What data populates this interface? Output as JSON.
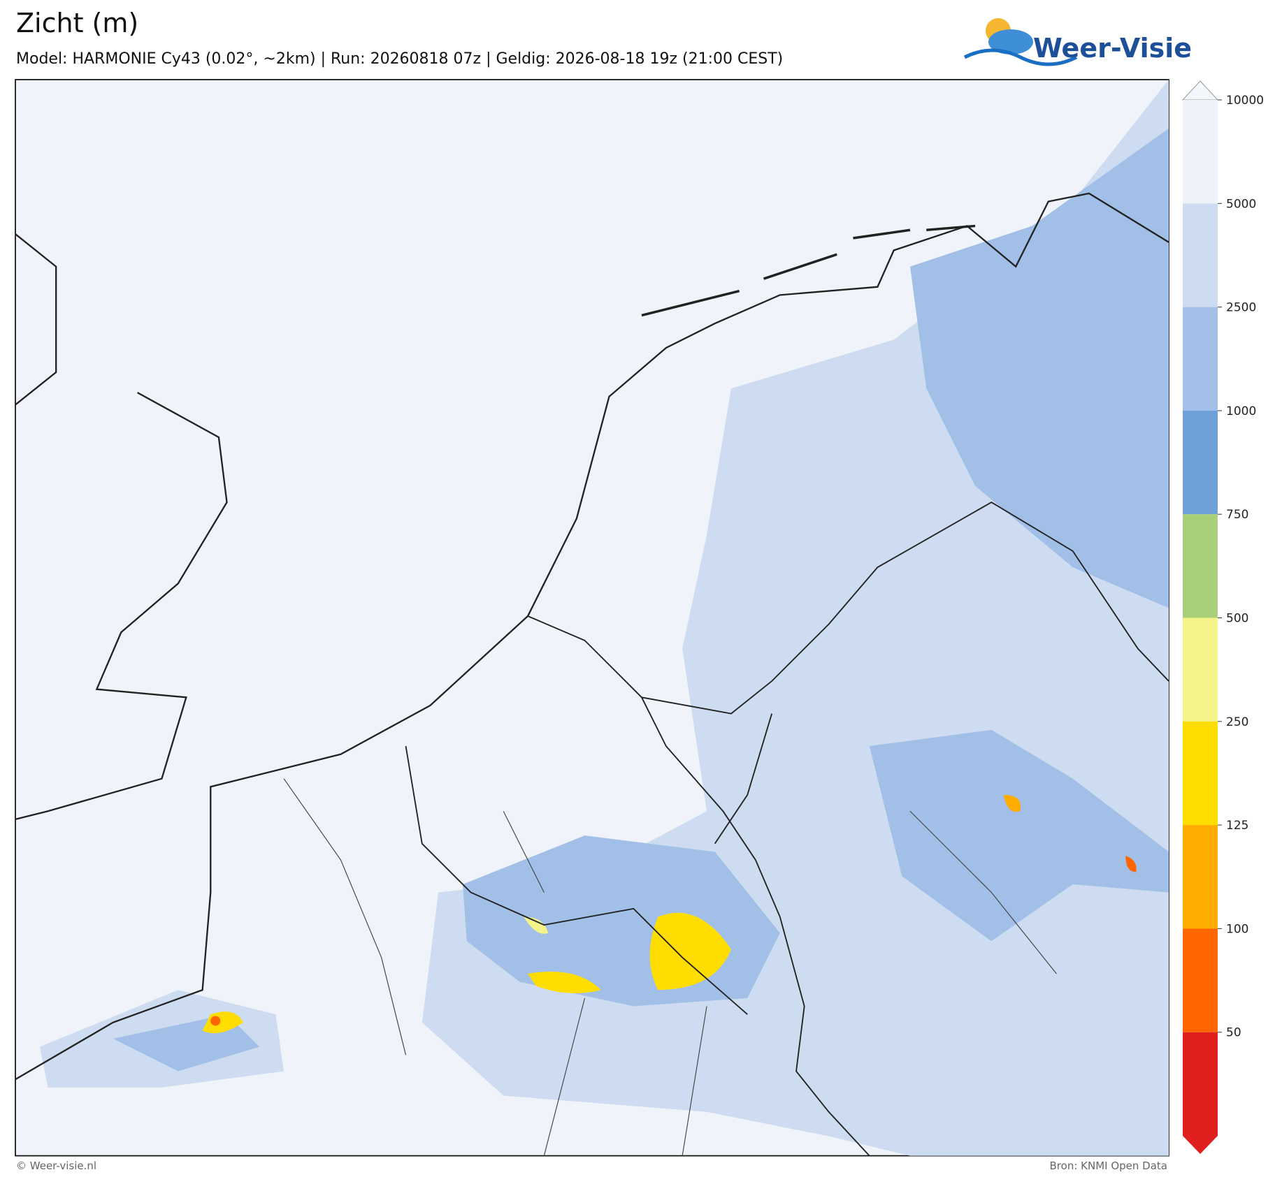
{
  "header": {
    "title": "Zicht (m)",
    "subtitle": "Model: HARMONIE Cy43 (0.02°, ~2km)  |  Run: 20260818 07z  |  Geldig: 2026-08-18 19z (21:00 CEST)",
    "logo": "Weer-Visie"
  },
  "colorbar": {
    "ticks": [
      10000,
      5000,
      2500,
      1000,
      750,
      500,
      250,
      125,
      100,
      50
    ],
    "colors": [
      "#f3f6fb",
      "#eff3f9",
      "#cddcf0",
      "#a2c0e7",
      "#6e9fd8",
      "#a9cf79",
      "#f4f389",
      "#ffdd00",
      "#ffab00",
      "#ff6600",
      "#e01f1f"
    ]
  },
  "footer": {
    "left": "© Weer-visie.nl",
    "right": "Bron: KNMI Open Data"
  }
}
